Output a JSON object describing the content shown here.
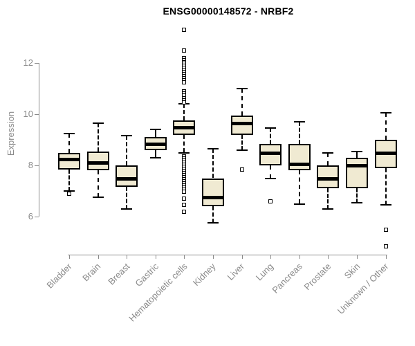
{
  "page": {
    "background": "#ffffff"
  },
  "chart_data": {
    "type": "boxplot",
    "title": "ENSG00000148572 - NRBF2",
    "ylabel": "Expression",
    "xlabel": "",
    "ylim": [
      6,
      12
    ],
    "y_ticks": [
      6,
      8,
      10,
      12
    ],
    "grid": false,
    "legend": "none",
    "categories": [
      "Bladder",
      "Brain",
      "Breast",
      "Gastric",
      "Hematopoietic cells",
      "Kidney",
      "Liver",
      "Lung",
      "Pancreas",
      "Prostate",
      "Skin",
      "Unknown / Other"
    ],
    "boxes": [
      {
        "category": "Bladder",
        "whisker_low": 7.0,
        "q1": 7.85,
        "median": 8.25,
        "q3": 8.5,
        "whisker_high": 9.25,
        "outliers": [
          6.9
        ]
      },
      {
        "category": "Brain",
        "whisker_low": 6.75,
        "q1": 7.8,
        "median": 8.1,
        "q3": 8.55,
        "whisker_high": 9.65,
        "outliers": []
      },
      {
        "category": "Breast",
        "whisker_low": 6.3,
        "q1": 7.15,
        "median": 7.5,
        "q3": 8.0,
        "whisker_high": 9.15,
        "outliers": []
      },
      {
        "category": "Gastric",
        "whisker_low": 8.3,
        "q1": 8.6,
        "median": 8.85,
        "q3": 9.1,
        "whisker_high": 9.4,
        "outliers": []
      },
      {
        "category": "Hematopoietic cells",
        "whisker_low": 8.5,
        "q1": 9.2,
        "median": 9.5,
        "q3": 9.75,
        "whisker_high": 10.4,
        "outliers": [
          13.3,
          12.5,
          12.2,
          12.12,
          12.04,
          11.96,
          11.88,
          11.8,
          11.72,
          11.64,
          11.56,
          11.48,
          11.4,
          11.32,
          11.24,
          10.88,
          10.8,
          10.72,
          10.62,
          10.54,
          10.46,
          8.34,
          8.26,
          8.18,
          8.1,
          8.02,
          7.94,
          7.86,
          7.78,
          7.7,
          7.62,
          7.54,
          7.46,
          7.38,
          7.3,
          7.22,
          7.14,
          7.06,
          6.98,
          6.7,
          6.45,
          6.2
        ]
      },
      {
        "category": "Kidney",
        "whisker_low": 5.75,
        "q1": 6.4,
        "median": 6.75,
        "q3": 7.5,
        "whisker_high": 8.65,
        "outliers": []
      },
      {
        "category": "Liver",
        "whisker_low": 8.6,
        "q1": 9.2,
        "median": 9.65,
        "q3": 9.95,
        "whisker_high": 11.0,
        "outliers": [
          7.85
        ]
      },
      {
        "category": "Lung",
        "whisker_low": 7.5,
        "q1": 8.0,
        "median": 8.5,
        "q3": 8.85,
        "whisker_high": 9.45,
        "outliers": [
          6.6
        ]
      },
      {
        "category": "Pancreas",
        "whisker_low": 6.5,
        "q1": 7.8,
        "median": 8.05,
        "q3": 8.85,
        "whisker_high": 9.7,
        "outliers": []
      },
      {
        "category": "Prostate",
        "whisker_low": 6.3,
        "q1": 7.1,
        "median": 7.5,
        "q3": 8.0,
        "whisker_high": 8.5,
        "outliers": []
      },
      {
        "category": "Skin",
        "whisker_low": 6.55,
        "q1": 7.1,
        "median": 8.0,
        "q3": 8.3,
        "whisker_high": 8.55,
        "outliers": []
      },
      {
        "category": "Unknown / Other",
        "whisker_low": 6.45,
        "q1": 7.9,
        "median": 8.5,
        "q3": 9.0,
        "whisker_high": 10.05,
        "outliers": [
          5.5,
          4.85
        ]
      }
    ]
  },
  "style": {
    "box_fill": "#F0EAD2",
    "box_border": "#000000",
    "median_color": "#000000",
    "whisker_color": "#000000",
    "axis_color": "#8A8A8A",
    "tick_label_color": "#8A8A8A",
    "title_color": "#000000"
  }
}
